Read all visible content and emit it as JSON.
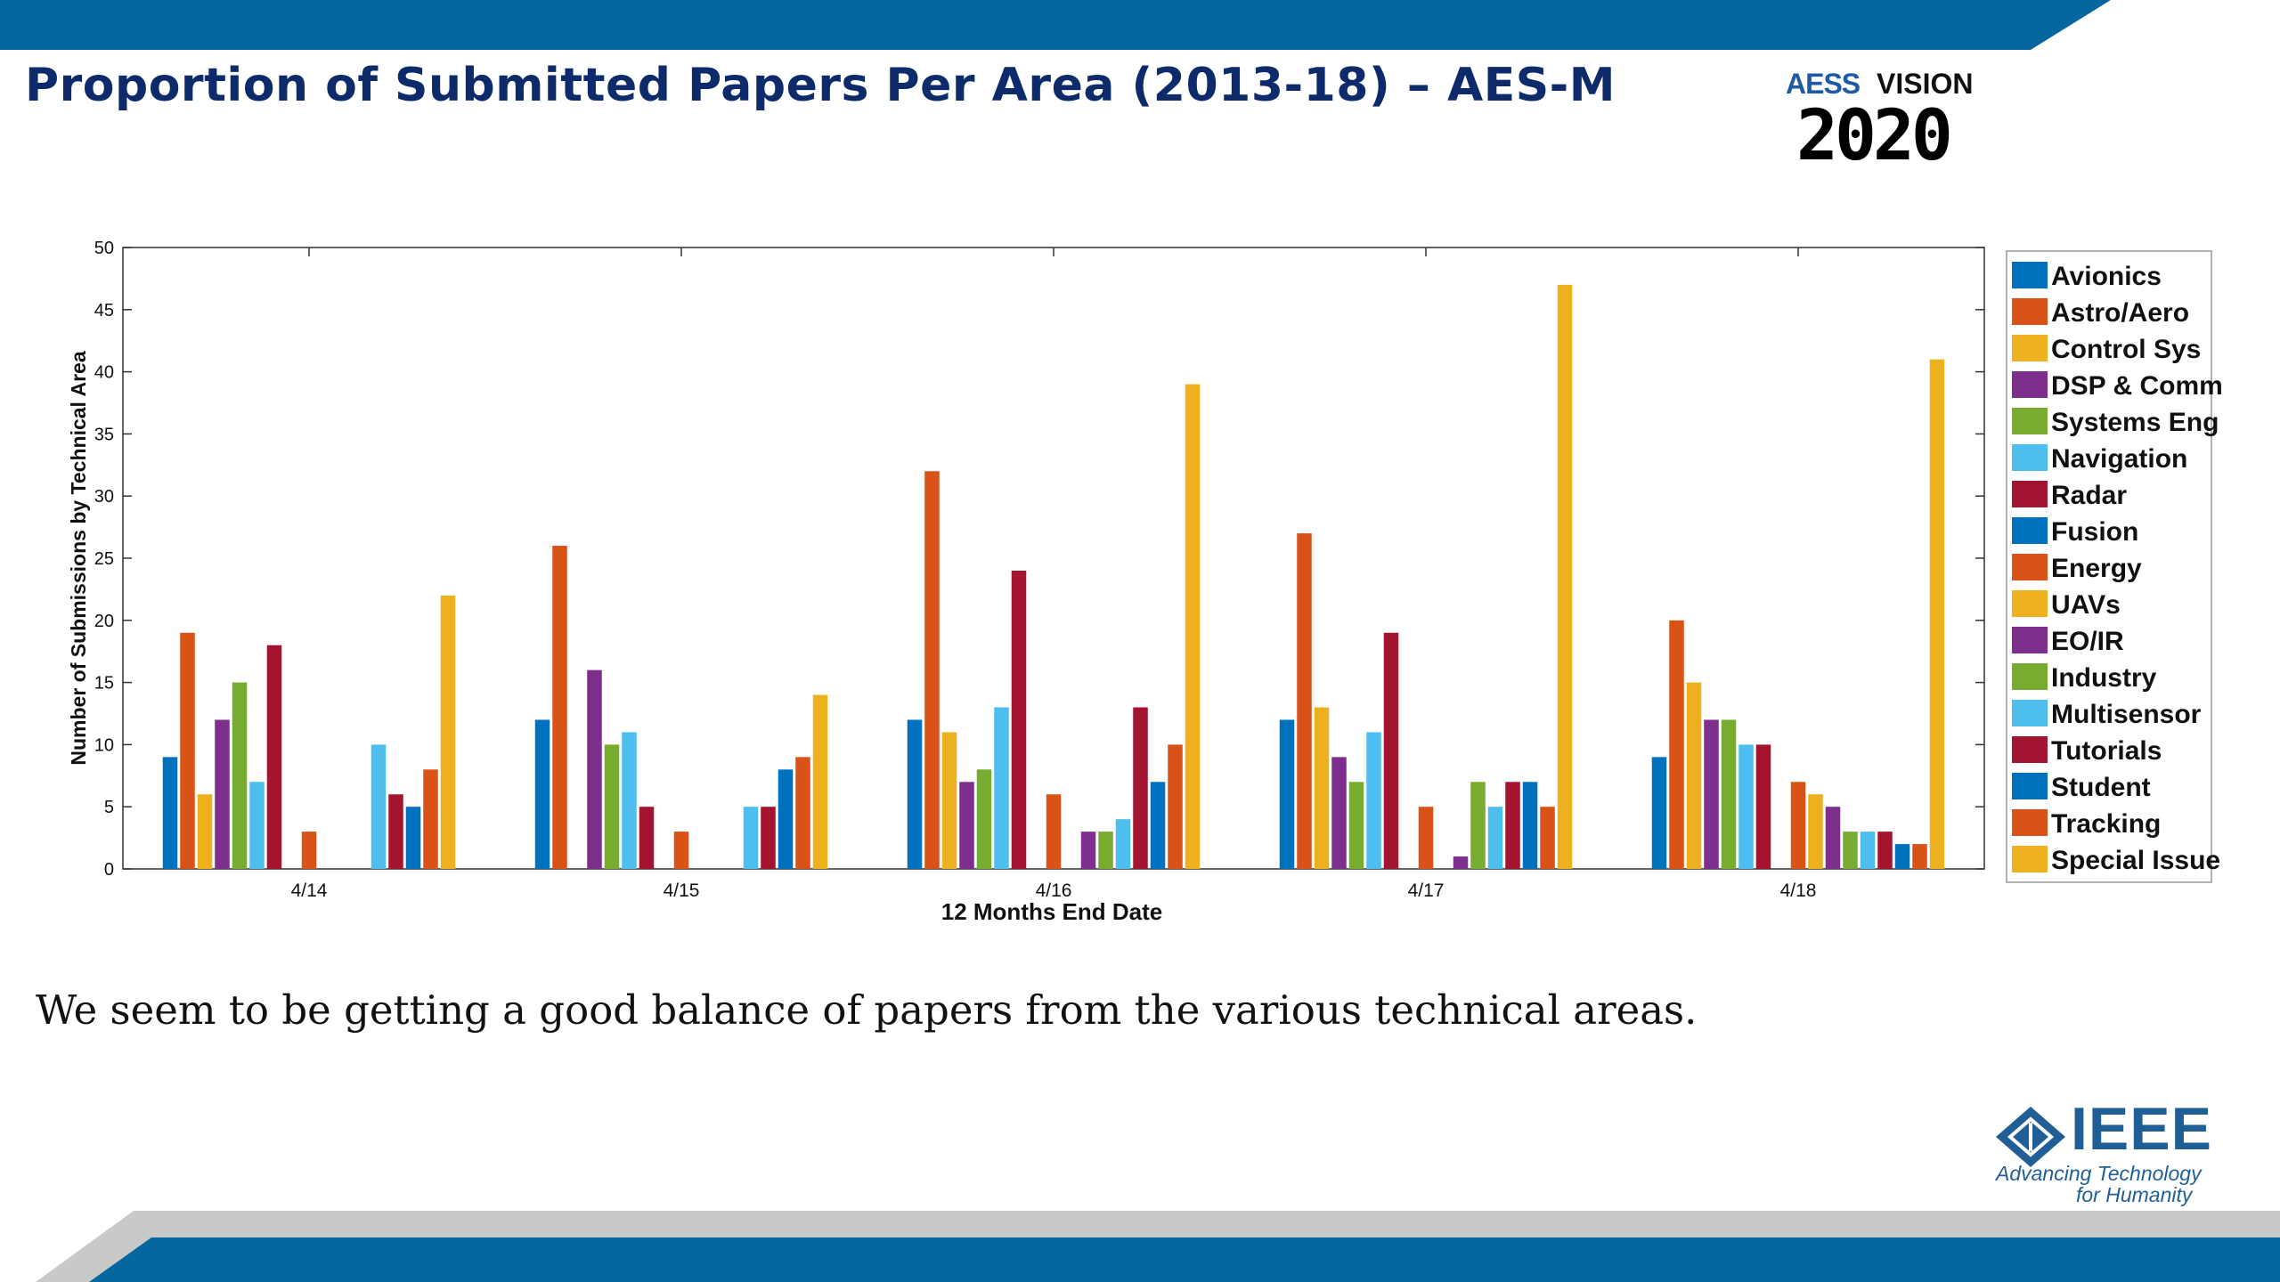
{
  "slide": {
    "title": "Proportion of Submitted Papers Per Area (2013-18) – AES-M",
    "caption": "We seem to be getting a good balance of papers from the various technical areas.",
    "logo_aess_line1": "AESS",
    "logo_aess_line1b": "VISION",
    "logo_aess_line2": "2020",
    "ieee_word": "IEEE",
    "ieee_tagline_1": "Advancing Technology",
    "ieee_tagline_2": "for Humanity",
    "colors": {
      "band_blue": "#06679e",
      "band_grey": "#c9c9c9",
      "title": "#0d2a6b"
    }
  },
  "chart_data": {
    "type": "bar",
    "xlabel": "12 Months End Date",
    "ylabel": "Number of Submissions by Technical Area",
    "ylim": [
      0,
      50
    ],
    "yticks": [
      0,
      5,
      10,
      15,
      20,
      25,
      30,
      35,
      40,
      45,
      50
    ],
    "grid": false,
    "legend_position": "right",
    "categories": [
      "4/14",
      "4/15",
      "4/16",
      "4/17",
      "4/18"
    ],
    "series": [
      {
        "name": "Avionics",
        "color": "#0072bd",
        "values": [
          9,
          12,
          12,
          12,
          9
        ]
      },
      {
        "name": "Astro/Aero",
        "color": "#d95319",
        "values": [
          19,
          26,
          32,
          27,
          20
        ]
      },
      {
        "name": "Control Sys",
        "color": "#edb120",
        "values": [
          6,
          0,
          11,
          13,
          15
        ]
      },
      {
        "name": "DSP & Comm",
        "color": "#7e2f8e",
        "values": [
          12,
          16,
          7,
          9,
          12
        ]
      },
      {
        "name": "Systems Eng",
        "color": "#77ac30",
        "values": [
          15,
          10,
          8,
          7,
          12
        ]
      },
      {
        "name": "Navigation",
        "color": "#4dbeee",
        "values": [
          7,
          11,
          13,
          11,
          10
        ]
      },
      {
        "name": "Radar",
        "color": "#a2142f",
        "values": [
          18,
          5,
          24,
          19,
          10
        ]
      },
      {
        "name": "Fusion",
        "color": "#0072bd",
        "values": [
          0,
          0,
          0,
          0,
          0
        ]
      },
      {
        "name": "Energy",
        "color": "#d95319",
        "values": [
          3,
          3,
          6,
          5,
          7
        ]
      },
      {
        "name": "UAVs",
        "color": "#edb120",
        "values": [
          0,
          0,
          0,
          0,
          6
        ]
      },
      {
        "name": "EO/IR",
        "color": "#7e2f8e",
        "values": [
          0,
          0,
          3,
          1,
          5
        ]
      },
      {
        "name": "Industry",
        "color": "#77ac30",
        "values": [
          0,
          0,
          3,
          7,
          3
        ]
      },
      {
        "name": "Multisensor",
        "color": "#4dbeee",
        "values": [
          10,
          5,
          4,
          5,
          3
        ]
      },
      {
        "name": "Tutorials",
        "color": "#a2142f",
        "values": [
          6,
          5,
          13,
          7,
          3
        ]
      },
      {
        "name": "Student",
        "color": "#0072bd",
        "values": [
          5,
          8,
          7,
          7,
          2
        ]
      },
      {
        "name": "Tracking",
        "color": "#d95319",
        "values": [
          8,
          9,
          10,
          5,
          2
        ]
      },
      {
        "name": "Special Issue",
        "color": "#edb120",
        "values": [
          22,
          14,
          39,
          47,
          41
        ]
      }
    ]
  }
}
